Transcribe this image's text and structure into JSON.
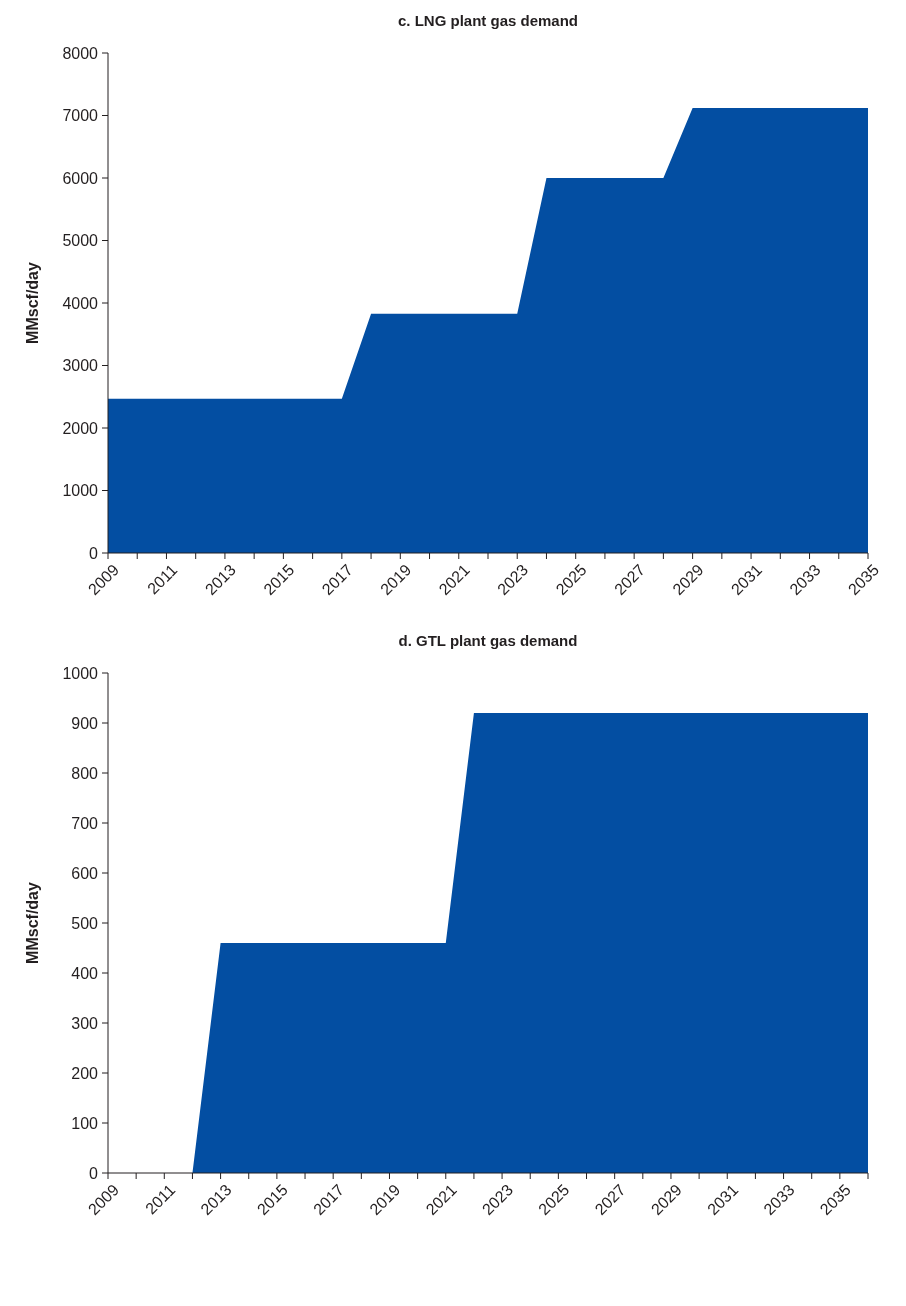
{
  "chart_data": [
    {
      "type": "area",
      "title": "c. LNG plant gas demand",
      "ylabel": "MMscf/day",
      "color": "#034ea2",
      "x": [
        2009,
        2010,
        2011,
        2012,
        2013,
        2014,
        2015,
        2016,
        2017,
        2018,
        2019,
        2020,
        2021,
        2022,
        2023,
        2024,
        2025,
        2026,
        2027,
        2028,
        2029,
        2030,
        2031,
        2032,
        2033,
        2034,
        2035
      ],
      "values": [
        2470,
        2470,
        2470,
        2470,
        2470,
        2470,
        2470,
        2470,
        2470,
        3830,
        3830,
        3830,
        3830,
        3830,
        3830,
        6000,
        6000,
        6000,
        6000,
        6000,
        7120,
        7120,
        7120,
        7120,
        7120,
        7120,
        7120
      ],
      "xlim": [
        2009,
        2035
      ],
      "xticks": [
        2009,
        {
          "value": 2010,
          "label": null
        },
        2011,
        {
          "value": 2012,
          "label": null
        },
        2013,
        {
          "value": 2014,
          "label": null
        },
        2015,
        {
          "value": 2016,
          "label": null
        },
        2017,
        {
          "value": 2018,
          "label": null
        },
        2019,
        {
          "value": 2020,
          "label": null
        },
        2021,
        {
          "value": 2022,
          "label": null
        },
        2023,
        {
          "value": 2024,
          "label": null
        },
        2025,
        {
          "value": 2026,
          "label": null
        },
        2027,
        {
          "value": 2028,
          "label": null
        },
        2029,
        {
          "value": 2030,
          "label": null
        },
        2031,
        {
          "value": 2032,
          "label": null
        },
        2033,
        {
          "value": 2034,
          "label": null
        },
        2035
      ],
      "ylim": [
        0,
        8000
      ],
      "yticks": [
        0,
        1000,
        2000,
        3000,
        4000,
        5000,
        6000,
        7000,
        8000
      ]
    },
    {
      "type": "area",
      "title": "d. GTL plant gas demand",
      "ylabel": "MMscf/day",
      "color": "#034ea2",
      "x": [
        2009,
        2010,
        2011,
        2012,
        2013,
        2014,
        2015,
        2016,
        2017,
        2018,
        2019,
        2020,
        2021,
        2022,
        2023,
        2024,
        2025,
        2026,
        2027,
        2028,
        2029,
        2030,
        2031,
        2032,
        2033,
        2034,
        2035,
        2036
      ],
      "values": [
        0,
        0,
        0,
        0,
        460,
        460,
        460,
        460,
        460,
        460,
        460,
        460,
        460,
        920,
        920,
        920,
        920,
        920,
        920,
        920,
        920,
        920,
        920,
        920,
        920,
        920,
        920,
        920
      ],
      "xlim": [
        2009,
        2036
      ],
      "xticks": [
        2009,
        {
          "value": 2010,
          "label": null
        },
        2011,
        {
          "value": 2012,
          "label": null
        },
        2013,
        {
          "value": 2014,
          "label": null
        },
        2015,
        {
          "value": 2016,
          "label": null
        },
        2017,
        {
          "value": 2018,
          "label": null
        },
        2019,
        {
          "value": 2020,
          "label": null
        },
        2021,
        {
          "value": 2022,
          "label": null
        },
        2023,
        {
          "value": 2024,
          "label": null
        },
        2025,
        {
          "value": 2026,
          "label": null
        },
        2027,
        {
          "value": 2028,
          "label": null
        },
        2029,
        {
          "value": 2030,
          "label": null
        },
        2031,
        {
          "value": 2032,
          "label": null
        },
        2033,
        {
          "value": 2034,
          "label": null
        },
        2035,
        {
          "value": 2036,
          "label": null
        }
      ],
      "ylim": [
        0,
        1000
      ],
      "yticks": [
        0,
        100,
        200,
        300,
        400,
        500,
        600,
        700,
        800,
        900,
        1000
      ]
    }
  ]
}
